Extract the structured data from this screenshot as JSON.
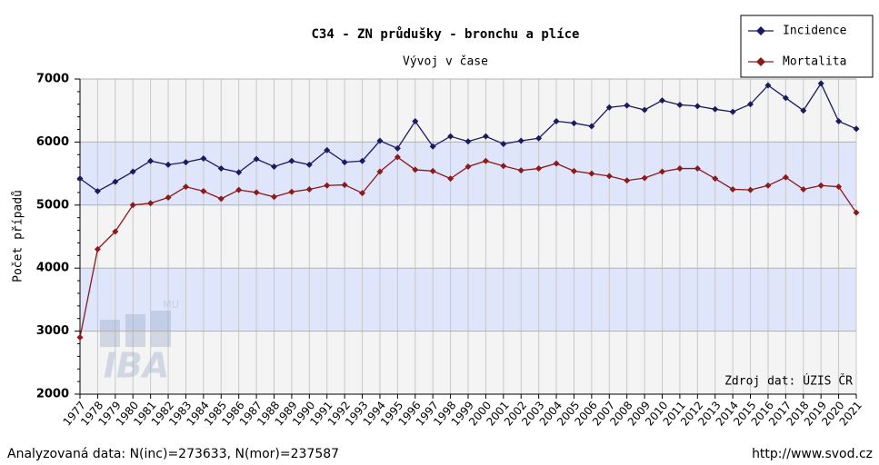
{
  "chart_data": {
    "type": "line",
    "title": "C34 - ZN průdušky - bronchu a plíce",
    "subtitle": "Vývoj v čase",
    "y_label": "Počet případů",
    "source_note": "Zdroj dat: ÚZIS ČR",
    "footer_left": "Analyzovaná data: N(inc)=273633, N(mor)=237587",
    "footer_right": "http://www.svod.cz",
    "logo": {
      "text": "IBA",
      "sub": "MU"
    },
    "categories": [
      "1977",
      "1978",
      "1979",
      "1980",
      "1981",
      "1982",
      "1983",
      "1984",
      "1985",
      "1986",
      "1987",
      "1988",
      "1989",
      "1990",
      "1991",
      "1992",
      "1993",
      "1994",
      "1995",
      "1996",
      "1997",
      "1998",
      "1999",
      "2000",
      "2001",
      "2002",
      "2003",
      "2004",
      "2005",
      "2006",
      "2007",
      "2008",
      "2009",
      "2010",
      "2011",
      "2012",
      "2013",
      "2014",
      "2015",
      "2016",
      "2017",
      "2018",
      "2019",
      "2020",
      "2021"
    ],
    "series": [
      {
        "name": "Incidence",
        "color": "#1a1a5e",
        "values": [
          5420,
          5220,
          5370,
          5530,
          5700,
          5640,
          5680,
          5740,
          5580,
          5520,
          5730,
          5610,
          5700,
          5640,
          5870,
          5680,
          5700,
          6020,
          5900,
          6330,
          5930,
          6090,
          6010,
          6090,
          5970,
          6020,
          6060,
          6330,
          6300,
          6250,
          6550,
          6580,
          6510,
          6660,
          6590,
          6570,
          6520,
          6480,
          6600,
          6900,
          6700,
          6500,
          6930,
          6330,
          6210
        ]
      },
      {
        "name": "Mortalita",
        "color": "#8b1a1a",
        "values": [
          2900,
          4300,
          4580,
          5000,
          5030,
          5120,
          5290,
          5220,
          5100,
          5240,
          5200,
          5130,
          5210,
          5250,
          5310,
          5320,
          5190,
          5530,
          5760,
          5560,
          5540,
          5420,
          5610,
          5700,
          5620,
          5550,
          5580,
          5660,
          5540,
          5500,
          5460,
          5390,
          5430,
          5530,
          5580,
          5580,
          5420,
          5250,
          5240,
          5310,
          5440,
          5250,
          5310,
          5290,
          4880
        ]
      }
    ],
    "ylim": [
      2000,
      7000
    ],
    "yticks": [
      2000,
      3000,
      4000,
      5000,
      6000,
      7000
    ],
    "bands": [
      [
        5000,
        6000
      ],
      [
        3000,
        4000
      ]
    ],
    "band_color": "#dfe6fb",
    "grid": true,
    "legend": "top-right"
  }
}
